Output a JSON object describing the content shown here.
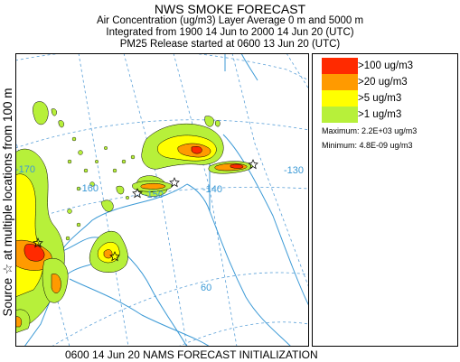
{
  "header": {
    "title": "NWS SMOKE FORECAST",
    "line2": "Air Concentration (ug/m3) Layer Average    0 m and  5000 m",
    "line3": "Integrated from 1900 14 Jun to 2000 14 Jun 20 (UTC)",
    "line4": "PM25 Release started at 0600 13 Jun 20 (UTC)"
  },
  "side_label": "Source ☆  at multiple locations   from  100 m",
  "map": {
    "longitude_labels": [
      "-170",
      "-160",
      "-150",
      "-140",
      "-130"
    ],
    "latitude_labels": [
      "60"
    ],
    "graticule_color": "#5aa0d8",
    "coast_color": "#3c9ad6"
  },
  "legend": {
    "items": [
      {
        "label": ">100 ug/m3",
        "color": "#ff2a00"
      },
      {
        "label": ">20 ug/m3",
        "color": "#ff9a00"
      },
      {
        "label": ">5 ug/m3",
        "color": "#ffff00"
      },
      {
        "label": ">1 ug/m3",
        "color": "#b7f03a"
      }
    ],
    "maximum": "Maximum: 2.2E+03 ug/m3",
    "minimum": "Minimum: 4.8E-09 ug/m3"
  },
  "footer": "0600 14 Jun 20 NAMS FORECAST INITIALIZATION"
}
